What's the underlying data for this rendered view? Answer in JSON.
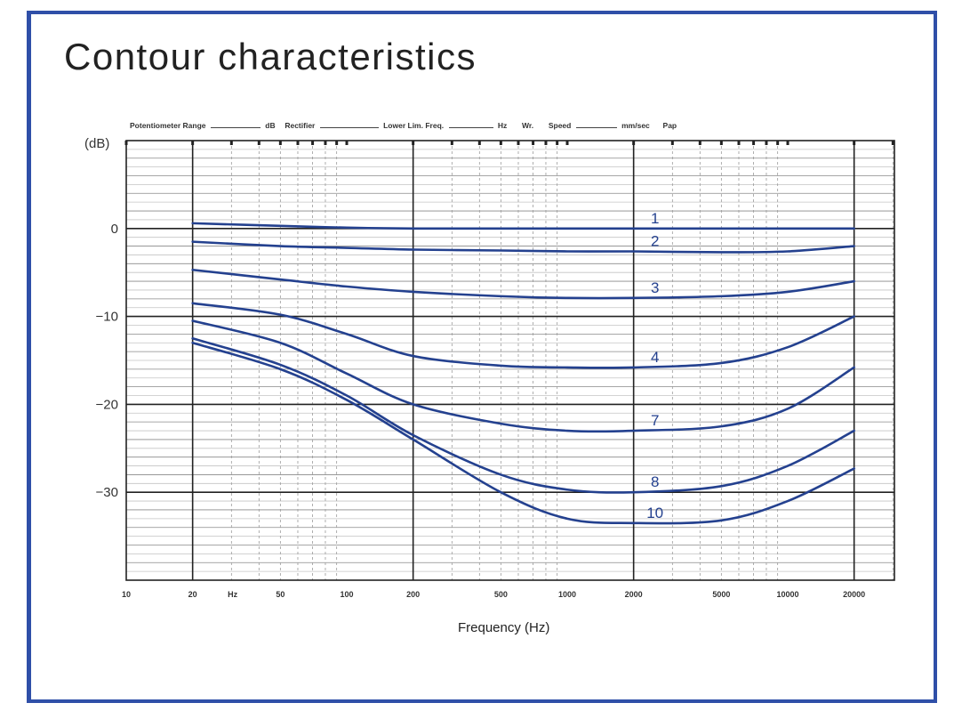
{
  "title": "Contour characteristics",
  "header_strip": {
    "pot_range": "Potentiometer Range",
    "db": "dB",
    "rectifier": "Rectifier",
    "lower_lim": "Lower Lim. Freq.",
    "hz": "Hz",
    "wr": "Wr.",
    "speed": "Speed",
    "mm_sec": "mm/sec",
    "pap": "Pap"
  },
  "chart_data": {
    "type": "line",
    "title": "Contour characteristics",
    "xlabel": "Frequency (Hz)",
    "ylabel": "(dB)",
    "xscale": "log",
    "xlim": [
      10,
      40000
    ],
    "ylim": [
      -40,
      10
    ],
    "yticks": [
      0,
      -10,
      -20,
      -30
    ],
    "ytick_labels": [
      "0",
      "−10",
      "−20",
      "−30"
    ],
    "xticks": [
      10,
      20,
      50,
      100,
      200,
      500,
      1000,
      2000,
      5000,
      10000,
      20000
    ],
    "xtick_labels": [
      "10",
      "20",
      "50",
      "100",
      "200",
      "500",
      "1000",
      "2000",
      "5000",
      "10000",
      "20000"
    ],
    "xtick_unit_label": "Hz",
    "grid": true,
    "x": [
      20,
      50,
      100,
      200,
      500,
      1000,
      2000,
      5000,
      10000,
      20000
    ],
    "series": [
      {
        "name": "1",
        "values": [
          0.6,
          0.3,
          0.1,
          0.0,
          0.0,
          0.0,
          0.0,
          0.0,
          0.0,
          0.0
        ]
      },
      {
        "name": "2",
        "values": [
          -1.5,
          -2.0,
          -2.2,
          -2.4,
          -2.5,
          -2.6,
          -2.6,
          -2.7,
          -2.6,
          -2.0
        ]
      },
      {
        "name": "3",
        "values": [
          -4.7,
          -5.8,
          -6.6,
          -7.2,
          -7.7,
          -7.9,
          -7.9,
          -7.7,
          -7.2,
          -6.0
        ]
      },
      {
        "name": "4",
        "values": [
          -8.5,
          -9.8,
          -12.0,
          -14.5,
          -15.6,
          -15.8,
          -15.8,
          -15.3,
          -13.5,
          -10.0
        ]
      },
      {
        "name": "7",
        "values": [
          -10.5,
          -13.0,
          -16.5,
          -20.0,
          -22.2,
          -23.0,
          -23.0,
          -22.5,
          -20.5,
          -15.8
        ]
      },
      {
        "name": "8",
        "values": [
          -12.5,
          -15.5,
          -19.0,
          -23.5,
          -28.0,
          -29.7,
          -30.0,
          -29.3,
          -27.0,
          -23.0
        ]
      },
      {
        "name": "10",
        "values": [
          -13.0,
          -16.0,
          -19.5,
          -24.0,
          -30.0,
          -33.0,
          -33.5,
          -33.2,
          -31.0,
          -27.3
        ]
      }
    ],
    "series_color": "#24418f"
  }
}
